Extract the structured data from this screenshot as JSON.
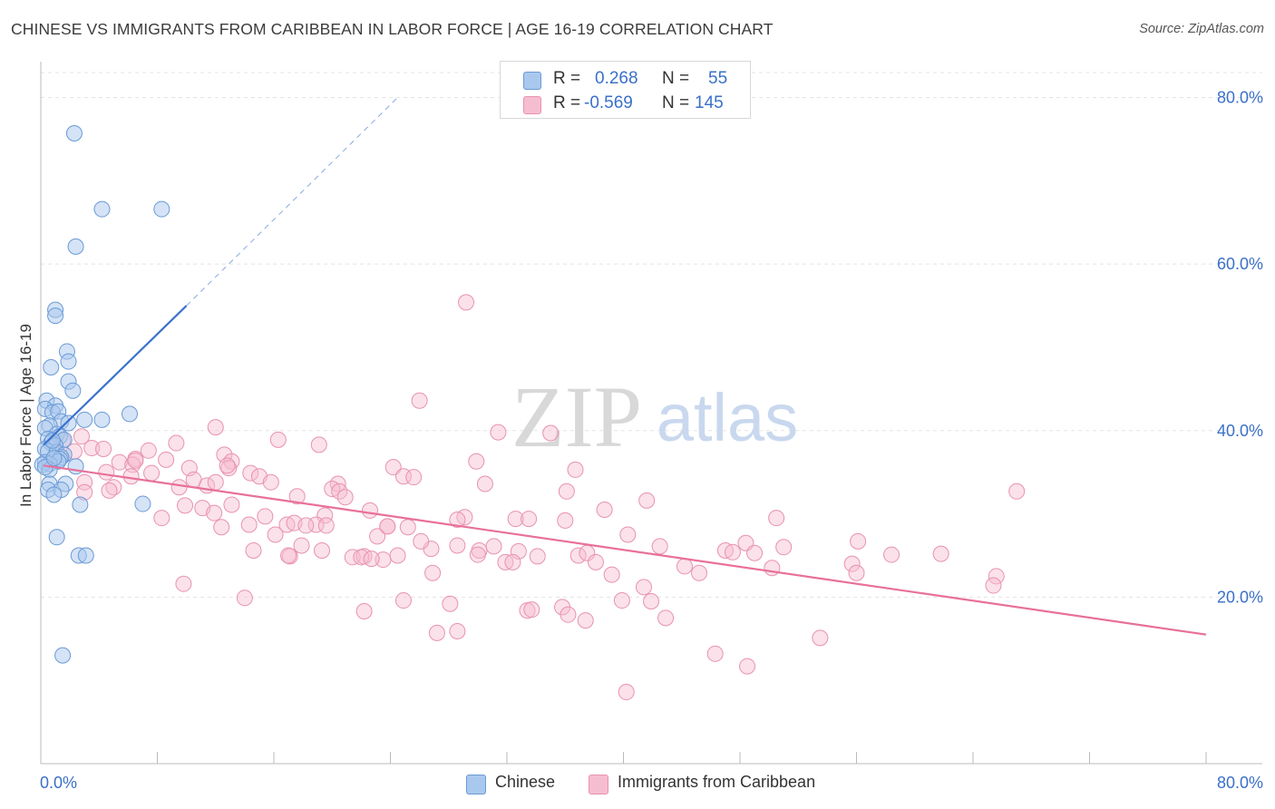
{
  "header": {
    "title": "CHINESE VS IMMIGRANTS FROM CARIBBEAN IN LABOR FORCE | AGE 16-19 CORRELATION CHART",
    "source": "Source: ZipAtlas.com"
  },
  "legend": {
    "rows": [
      {
        "r_label": "R =",
        "r_value": "0.268",
        "n_label": "N =",
        "n_value": "55"
      },
      {
        "r_label": "R =",
        "r_value": "-0.569",
        "n_label": "N =",
        "n_value": "145"
      }
    ]
  },
  "bottom_legend": {
    "items": [
      {
        "label": "Chinese"
      },
      {
        "label": "Immigrants from Caribbean"
      }
    ]
  },
  "watermark": {
    "zip": "ZIP",
    "atlas": "atlas"
  },
  "colors": {
    "chinese_fill": "#a9c8ee",
    "chinese_stroke": "#6a9ad6",
    "chinese_line": "#3a72cc",
    "caribbean_fill": "#f6bdd0",
    "caribbean_stroke": "#e892b0",
    "caribbean_line": "#e8709a",
    "axis_text": "#3a70c8",
    "grid": "#e4e4e4"
  },
  "chart_data": {
    "type": "scatter",
    "title": "CHINESE VS IMMIGRANTS FROM CARIBBEAN IN LABOR FORCE | AGE 16-19 CORRELATION CHART",
    "xlabel": "",
    "ylabel": "In Labor Force | Age 16-19",
    "xlim": [
      0,
      80
    ],
    "ylim": [
      0,
      83
    ],
    "x_tick_labels": [
      "0.0%",
      "80.0%"
    ],
    "y_ticks": [
      20,
      40,
      60,
      80
    ],
    "y_tick_labels": [
      "20.0%",
      "40.0%",
      "60.0%",
      "80.0%"
    ],
    "grid": true,
    "series": [
      {
        "name": "Chinese",
        "points": [
          [
            2.3,
            75.7
          ],
          [
            4.2,
            66.6
          ],
          [
            8.3,
            66.6
          ],
          [
            2.4,
            62.1
          ],
          [
            1.0,
            54.5
          ],
          [
            1.0,
            53.8
          ],
          [
            1.8,
            49.5
          ],
          [
            1.9,
            48.3
          ],
          [
            0.7,
            47.6
          ],
          [
            1.9,
            45.9
          ],
          [
            2.2,
            44.8
          ],
          [
            0.4,
            43.6
          ],
          [
            1.0,
            43.0
          ],
          [
            0.3,
            42.6
          ],
          [
            0.8,
            42.2
          ],
          [
            1.2,
            42.3
          ],
          [
            6.1,
            42.0
          ],
          [
            3.0,
            41.3
          ],
          [
            4.2,
            41.3
          ],
          [
            1.4,
            41.1
          ],
          [
            1.9,
            40.9
          ],
          [
            0.6,
            40.6
          ],
          [
            0.3,
            40.3
          ],
          [
            1.1,
            39.6
          ],
          [
            1.3,
            39.3
          ],
          [
            0.5,
            39.0
          ],
          [
            1.6,
            38.9
          ],
          [
            0.7,
            38.5
          ],
          [
            1.0,
            38.2
          ],
          [
            0.3,
            37.8
          ],
          [
            0.5,
            37.5
          ],
          [
            1.1,
            37.4
          ],
          [
            1.6,
            37.1
          ],
          [
            1.4,
            36.8
          ],
          [
            1.3,
            36.6
          ],
          [
            1.2,
            36.3
          ],
          [
            0.3,
            36.2
          ],
          [
            0.6,
            36.0
          ],
          [
            0.1,
            35.9
          ],
          [
            2.4,
            35.7
          ],
          [
            0.6,
            35.3
          ],
          [
            0.3,
            35.6
          ],
          [
            0.6,
            33.6
          ],
          [
            1.7,
            33.6
          ],
          [
            0.5,
            32.9
          ],
          [
            1.4,
            32.9
          ],
          [
            0.9,
            32.3
          ],
          [
            7.0,
            31.2
          ],
          [
            2.7,
            31.1
          ],
          [
            1.1,
            27.2
          ],
          [
            2.6,
            25.0
          ],
          [
            3.1,
            25.0
          ],
          [
            1.5,
            13.0
          ],
          [
            0.8,
            38.8
          ],
          [
            0.9,
            36.7
          ]
        ]
      },
      {
        "name": "Immigrants from Caribbean",
        "points": [
          [
            29.2,
            55.4
          ],
          [
            26.0,
            43.6
          ],
          [
            12.0,
            40.4
          ],
          [
            31.4,
            39.8
          ],
          [
            35.0,
            39.7
          ],
          [
            16.3,
            38.9
          ],
          [
            19.1,
            38.3
          ],
          [
            9.3,
            38.5
          ],
          [
            2.8,
            39.3
          ],
          [
            1.5,
            38.8
          ],
          [
            3.5,
            37.9
          ],
          [
            4.3,
            37.8
          ],
          [
            7.4,
            37.6
          ],
          [
            12.6,
            37.1
          ],
          [
            6.5,
            36.6
          ],
          [
            8.6,
            36.5
          ],
          [
            5.4,
            36.2
          ],
          [
            13.1,
            36.3
          ],
          [
            6.3,
            35.9
          ],
          [
            10.2,
            35.5
          ],
          [
            12.9,
            35.5
          ],
          [
            24.2,
            35.6
          ],
          [
            29.9,
            36.3
          ],
          [
            36.7,
            35.3
          ],
          [
            4.5,
            35.0
          ],
          [
            14.4,
            34.9
          ],
          [
            15.0,
            34.5
          ],
          [
            7.6,
            34.9
          ],
          [
            24.9,
            34.5
          ],
          [
            25.6,
            34.4
          ],
          [
            10.5,
            34.1
          ],
          [
            6.2,
            34.5
          ],
          [
            3.0,
            33.8
          ],
          [
            15.8,
            33.8
          ],
          [
            11.4,
            33.4
          ],
          [
            12.0,
            33.8
          ],
          [
            20.4,
            33.6
          ],
          [
            30.5,
            33.6
          ],
          [
            5.0,
            33.2
          ],
          [
            4.7,
            32.8
          ],
          [
            9.5,
            33.2
          ],
          [
            20.0,
            33.0
          ],
          [
            20.5,
            32.7
          ],
          [
            36.1,
            32.7
          ],
          [
            17.6,
            32.1
          ],
          [
            20.9,
            32.0
          ],
          [
            67.0,
            32.7
          ],
          [
            41.6,
            31.6
          ],
          [
            9.9,
            31.0
          ],
          [
            11.1,
            30.7
          ],
          [
            13.1,
            31.1
          ],
          [
            38.7,
            30.5
          ],
          [
            22.6,
            30.4
          ],
          [
            19.5,
            29.8
          ],
          [
            8.3,
            29.5
          ],
          [
            11.9,
            30.1
          ],
          [
            15.4,
            29.7
          ],
          [
            29.1,
            29.6
          ],
          [
            32.6,
            29.4
          ],
          [
            33.5,
            29.4
          ],
          [
            50.5,
            29.5
          ],
          [
            23.8,
            28.5
          ],
          [
            25.2,
            28.4
          ],
          [
            16.9,
            28.7
          ],
          [
            12.4,
            28.4
          ],
          [
            14.3,
            28.7
          ],
          [
            17.4,
            28.9
          ],
          [
            18.9,
            28.7
          ],
          [
            18.2,
            28.6
          ],
          [
            19.6,
            28.6
          ],
          [
            40.3,
            27.5
          ],
          [
            16.1,
            27.5
          ],
          [
            23.1,
            27.3
          ],
          [
            48.4,
            26.5
          ],
          [
            56.1,
            26.7
          ],
          [
            28.6,
            26.2
          ],
          [
            31.1,
            26.1
          ],
          [
            42.5,
            26.1
          ],
          [
            14.6,
            25.6
          ],
          [
            17.9,
            26.2
          ],
          [
            26.8,
            25.8
          ],
          [
            30.1,
            25.6
          ],
          [
            32.8,
            25.5
          ],
          [
            51.0,
            26.0
          ],
          [
            19.3,
            25.6
          ],
          [
            30.0,
            25.1
          ],
          [
            36.9,
            25.0
          ],
          [
            47.0,
            25.6
          ],
          [
            47.5,
            25.4
          ],
          [
            49.0,
            25.3
          ],
          [
            24.5,
            25.0
          ],
          [
            17.1,
            24.9
          ],
          [
            21.4,
            24.8
          ],
          [
            22.2,
            24.9
          ],
          [
            23.5,
            24.5
          ],
          [
            34.1,
            24.9
          ],
          [
            37.5,
            25.3
          ],
          [
            58.4,
            25.1
          ],
          [
            61.8,
            25.2
          ],
          [
            22.0,
            24.8
          ],
          [
            31.9,
            24.2
          ],
          [
            32.4,
            24.2
          ],
          [
            38.1,
            24.2
          ],
          [
            44.2,
            23.7
          ],
          [
            50.2,
            23.5
          ],
          [
            55.7,
            24.0
          ],
          [
            56.0,
            22.9
          ],
          [
            26.9,
            22.9
          ],
          [
            39.2,
            22.7
          ],
          [
            45.2,
            22.9
          ],
          [
            65.6,
            22.5
          ],
          [
            65.4,
            21.4
          ],
          [
            41.4,
            21.2
          ],
          [
            9.8,
            21.6
          ],
          [
            14.0,
            19.9
          ],
          [
            24.9,
            19.6
          ],
          [
            28.1,
            19.2
          ],
          [
            39.9,
            19.6
          ],
          [
            41.9,
            19.5
          ],
          [
            22.2,
            18.3
          ],
          [
            33.4,
            18.4
          ],
          [
            33.7,
            18.5
          ],
          [
            35.8,
            18.8
          ],
          [
            36.2,
            17.9
          ],
          [
            37.4,
            17.2
          ],
          [
            42.9,
            17.5
          ],
          [
            27.2,
            15.7
          ],
          [
            28.6,
            15.9
          ],
          [
            53.5,
            15.1
          ],
          [
            46.3,
            13.2
          ],
          [
            48.5,
            11.7
          ],
          [
            40.2,
            8.6
          ],
          [
            22.7,
            24.6
          ],
          [
            17.0,
            25.0
          ],
          [
            28.6,
            29.3
          ],
          [
            23.8,
            28.5
          ],
          [
            3.0,
            32.6
          ],
          [
            2.3,
            37.5
          ],
          [
            1.0,
            38.2
          ],
          [
            6.5,
            36.4
          ],
          [
            12.8,
            35.8
          ],
          [
            26.1,
            26.7
          ],
          [
            36.0,
            29.2
          ]
        ]
      }
    ],
    "trend_lines": [
      {
        "series": "Chinese",
        "solid": [
          [
            0.2,
            38.3
          ],
          [
            10.0,
            55.0
          ]
        ],
        "dashed_to": [
          24.5,
          80.0
        ]
      },
      {
        "series": "Immigrants from Caribbean",
        "solid": [
          [
            0.2,
            35.8
          ],
          [
            80.0,
            15.5
          ]
        ]
      }
    ]
  }
}
